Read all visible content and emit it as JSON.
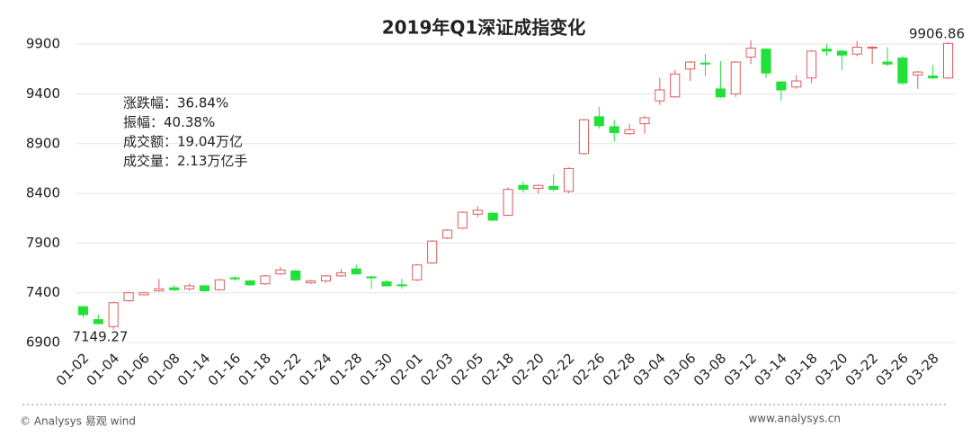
{
  "chart_data": {
    "type": "candlestick",
    "title": "2019年Q1深证成指变化",
    "categories": [
      "01-02",
      null,
      "01-04",
      null,
      "01-06",
      null,
      "01-08",
      null,
      "01-14",
      null,
      "01-16",
      null,
      "01-18",
      null,
      "01-22",
      null,
      "01-24",
      null,
      "01-28",
      null,
      "01-30",
      null,
      "02-01",
      null,
      "02-03",
      null,
      "02-05",
      null,
      "02-18",
      null,
      "02-20",
      null,
      "02-22",
      null,
      "02-26",
      null,
      "02-28",
      null,
      "03-04",
      null,
      "03-06",
      null,
      "03-08",
      null,
      "03-12",
      null,
      "03-14",
      null,
      "03-18",
      null,
      "03-20",
      null,
      "03-22",
      null,
      "03-26",
      null,
      "03-28",
      null
    ],
    "open": [
      7260,
      7130,
      7060,
      7320,
      7380,
      7420,
      7450,
      7440,
      7470,
      7430,
      7550,
      7520,
      7490,
      7590,
      7620,
      7500,
      7520,
      7570,
      7640,
      7560,
      7510,
      7480,
      7530,
      7700,
      7950,
      8050,
      8190,
      8200,
      8180,
      8480,
      8450,
      8470,
      8420,
      8800,
      9170,
      9070,
      9000,
      9100,
      9330,
      9370,
      9650,
      9710,
      9450,
      9400,
      9770,
      9850,
      9520,
      9470,
      9560,
      9850,
      9830,
      9800,
      9860,
      9720,
      9760,
      9590,
      9580,
      9560
    ],
    "close": [
      7180,
      7090,
      7300,
      7400,
      7400,
      7440,
      7430,
      7470,
      7420,
      7530,
      7540,
      7480,
      7570,
      7630,
      7530,
      7520,
      7570,
      7600,
      7590,
      7550,
      7470,
      7470,
      7680,
      7920,
      8030,
      8210,
      8230,
      8130,
      8440,
      8440,
      8480,
      8440,
      8650,
      9140,
      9080,
      9010,
      9040,
      9160,
      9440,
      9600,
      9720,
      9700,
      9370,
      9720,
      9860,
      9610,
      9440,
      9530,
      9830,
      9830,
      9790,
      9870,
      9870,
      9700,
      9510,
      9620,
      9560,
      9906.86
    ],
    "high": [
      7270,
      7180,
      7310,
      7410,
      7410,
      7540,
      7480,
      7490,
      7480,
      7540,
      7570,
      7530,
      7580,
      7660,
      7630,
      7530,
      7580,
      7640,
      7680,
      7570,
      7530,
      7540,
      7690,
      7930,
      8040,
      8220,
      8270,
      8210,
      8460,
      8520,
      8490,
      8590,
      8660,
      9150,
      9270,
      9140,
      9100,
      9180,
      9560,
      9640,
      9730,
      9800,
      9730,
      9730,
      9940,
      9860,
      9530,
      9590,
      9840,
      9900,
      9840,
      9930,
      9880,
      9870,
      9780,
      9630,
      9690,
      9920
    ],
    "low": [
      7150,
      7080,
      7030,
      7310,
      7375,
      7410,
      7420,
      7420,
      7410,
      7420,
      7520,
      7470,
      7480,
      7580,
      7520,
      7490,
      7500,
      7560,
      7580,
      7440,
      7460,
      7440,
      7520,
      7690,
      7940,
      8040,
      8160,
      8120,
      8170,
      8410,
      8400,
      8420,
      8400,
      8790,
      9050,
      8920,
      8990,
      9000,
      9290,
      9360,
      9530,
      9580,
      9360,
      9370,
      9700,
      9560,
      9330,
      9450,
      9510,
      9780,
      9640,
      9780,
      9700,
      9680,
      9490,
      9450,
      9550,
      9550
    ],
    "up_color": "#e05a5a",
    "down_color": "#22e03a",
    "ylim": [
      6900,
      10100
    ],
    "yticks": [
      6900,
      7400,
      7900,
      8400,
      8900,
      9400,
      9900
    ],
    "grid": true,
    "annotations": [
      {
        "text": "7149.27",
        "index": 0
      },
      {
        "text": "9906.86",
        "index": 57
      }
    ],
    "stats": [
      "涨跌幅：36.84%",
      "振幅：40.38%",
      "成交额：19.04万亿",
      "成交量：2.13万亿手"
    ]
  },
  "footer": {
    "left": "© Analysys 易观 wind",
    "right": "www.analysys.cn"
  }
}
